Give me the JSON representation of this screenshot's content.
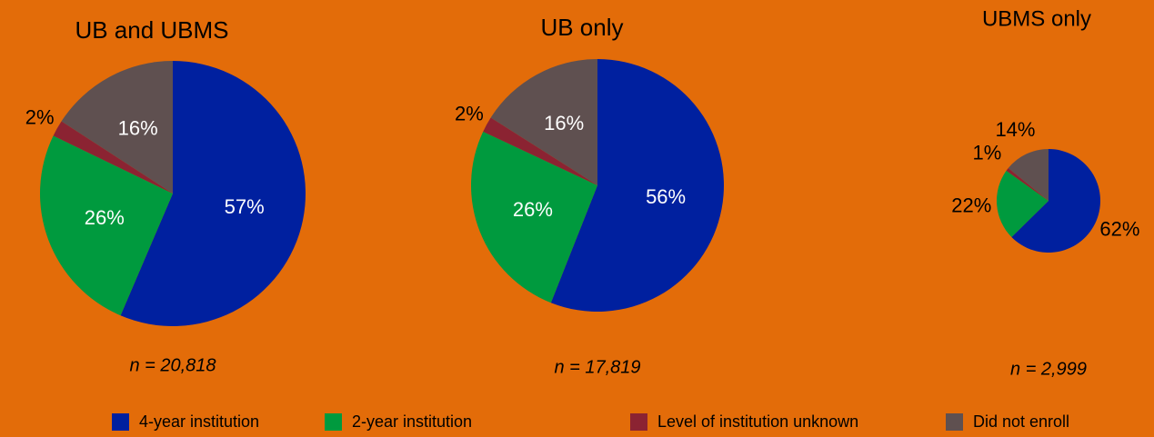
{
  "chart_data": [
    {
      "type": "pie",
      "title": "UB and UBMS",
      "note": "n = 20,818",
      "categories": [
        "4-year institution",
        "2-year institution",
        "Level of institution unknown",
        "Did not enroll"
      ],
      "values": [
        57,
        26,
        2,
        16
      ],
      "value_labels": [
        "57%",
        "26%",
        "2%",
        "16%"
      ],
      "colors": [
        "#00209f",
        "#009a3e",
        "#8b2332",
        "#5f5050"
      ]
    },
    {
      "type": "pie",
      "title": "UB only",
      "note": "n = 17,819",
      "categories": [
        "4-year institution",
        "2-year institution",
        "Level of institution unknown",
        "Did not enroll"
      ],
      "values": [
        56,
        26,
        2,
        16
      ],
      "value_labels": [
        "56%",
        "26%",
        "2%",
        "16%"
      ],
      "colors": [
        "#00209f",
        "#009a3e",
        "#8b2332",
        "#5f5050"
      ]
    },
    {
      "type": "pie",
      "title": "UBMS only",
      "note": "n = 2,999",
      "categories": [
        "4-year institution",
        "2-year institution",
        "Level of institution unknown",
        "Did not enroll"
      ],
      "values": [
        62,
        22,
        1,
        14
      ],
      "value_labels": [
        "62%",
        "22%",
        "1%",
        "14%"
      ],
      "colors": [
        "#00209f",
        "#009a3e",
        "#8b2332",
        "#5f5050"
      ]
    }
  ]
}
